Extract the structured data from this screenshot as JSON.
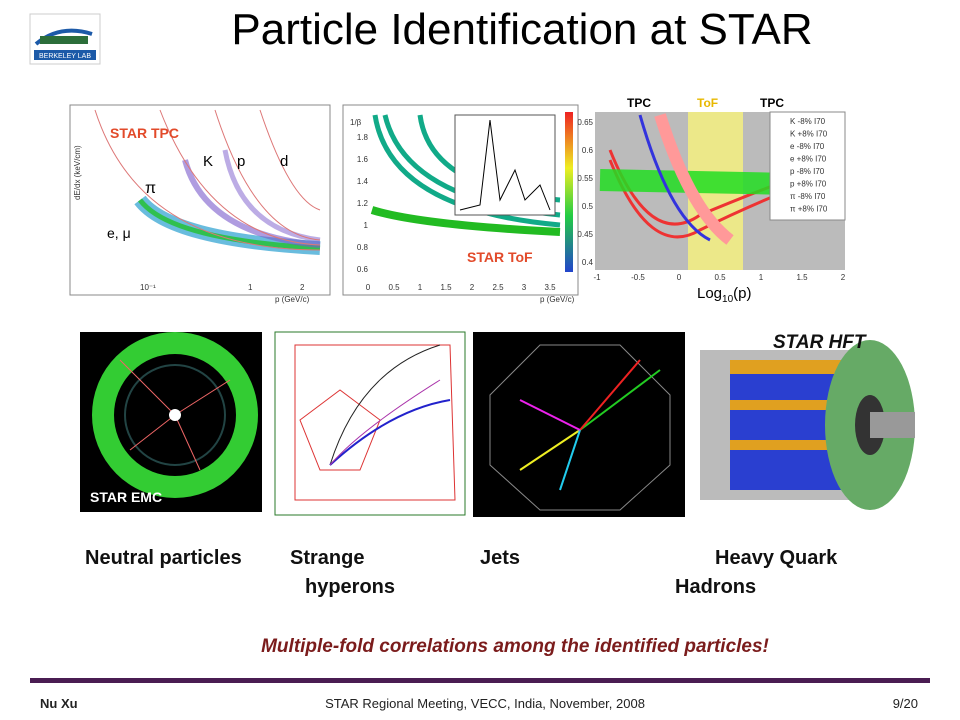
{
  "header": {
    "title": "Particle Identification at STAR",
    "logo": "BERKELEY LAB"
  },
  "plots": [
    {
      "labels": [
        "STAR TPC",
        "K",
        "p",
        "d",
        "π",
        "e, μ"
      ],
      "x_axis": "p (GeV/c)",
      "y_axis": "dE/dx (keV/cm)",
      "xticks": [
        "10⁻¹",
        "1",
        "2"
      ]
    },
    {
      "labels": [
        "STAR ToF"
      ],
      "x_axis": "p (GeV/c)",
      "y_axis": "1/β",
      "xticks": [
        "0",
        "0.5",
        "1",
        "1.5",
        "2",
        "2.5",
        "3",
        "3.5"
      ],
      "yticks": [
        "1.8",
        "1.6",
        "1.4",
        "1.2",
        "1",
        "0.8",
        "0.6"
      ]
    },
    {
      "regions": [
        "TPC",
        "ToF",
        "TPC"
      ],
      "x_axis": {
        "base": "Log",
        "sub": "10",
        "rest": "(p)"
      },
      "xticks": [
        "-1",
        "-0.5",
        "0",
        "0.5",
        "1",
        "1.5",
        "2"
      ],
      "yticks": [
        "0.65",
        "0.6",
        "0.55",
        "0.5",
        "0.45",
        "0.4"
      ],
      "legend": [
        "K -8% I70",
        "K +8% I70",
        "e -8% I70",
        "e +8% I70",
        "p -8% I70",
        "p +8% I70",
        "π -8% I70",
        "π +8% I70"
      ]
    }
  ],
  "panels": [
    {
      "label": "STAR EMC"
    },
    {
      "label": "STAR HFT"
    }
  ],
  "captions": [
    {
      "lines": [
        "Neutral particles"
      ]
    },
    {
      "lines": [
        "Strange",
        "hyperons"
      ]
    },
    {
      "lines": [
        "Jets"
      ]
    },
    {
      "lines": [
        "Heavy Quark",
        "Hadrons"
      ]
    }
  ],
  "note": "Multiple-fold correlations among the identified particles!",
  "footer": {
    "author": "Nu Xu",
    "event": "STAR Regional Meeting, VECC, India, November, 2008",
    "page": "9/20"
  }
}
